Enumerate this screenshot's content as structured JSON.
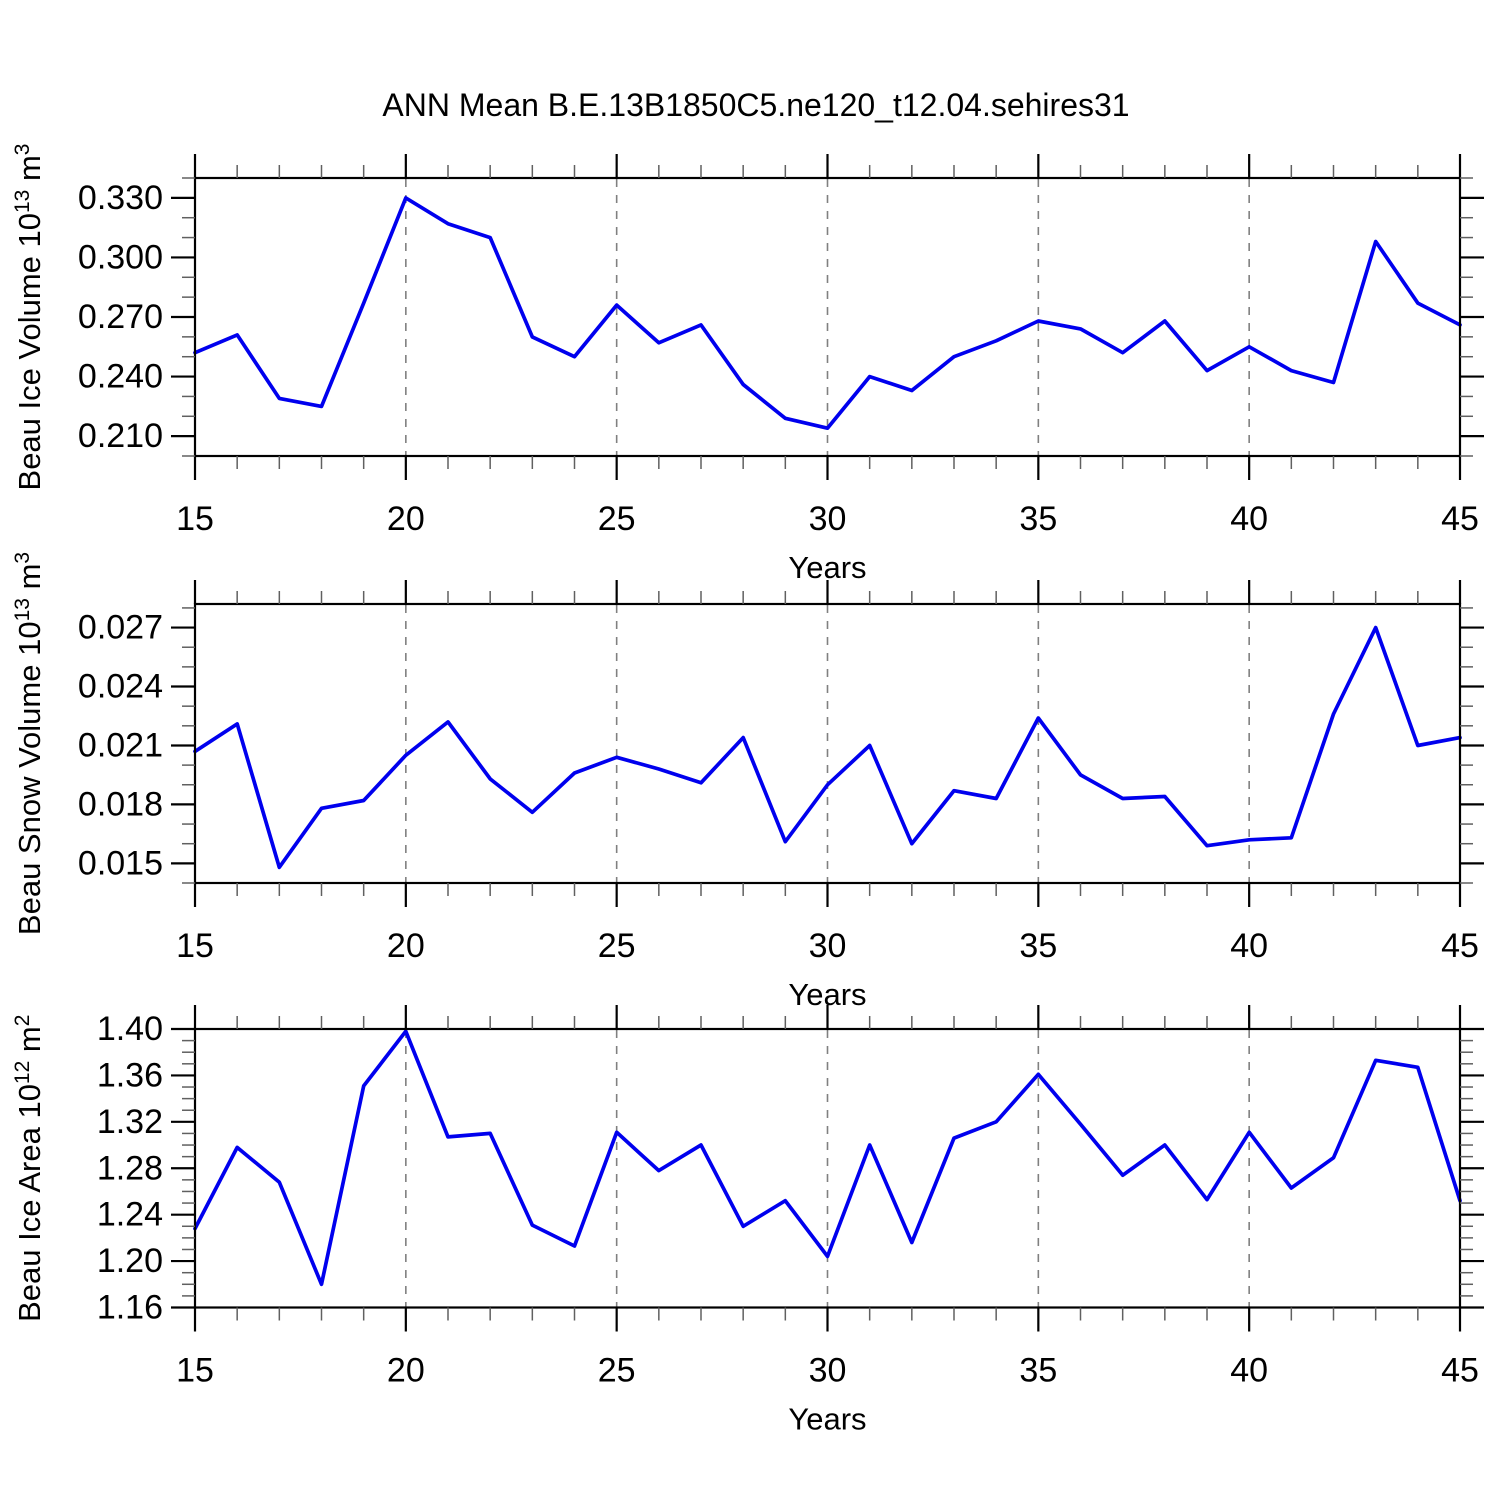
{
  "title": "ANN Mean B.E.13B1850C5.ne120_t12.04.sehires31",
  "chart_data": [
    {
      "type": "line",
      "panel": 1,
      "ylabel_segments": [
        {
          "t": "Beau Ice Volume 10",
          "sup": false
        },
        {
          "t": "13",
          "sup": true
        },
        {
          "t": " m",
          "sup": false
        },
        {
          "t": "3",
          "sup": true
        }
      ],
      "xlabel": "Years",
      "x": [
        15,
        16,
        17,
        18,
        19,
        20,
        21,
        22,
        23,
        24,
        25,
        26,
        27,
        28,
        29,
        30,
        31,
        32,
        33,
        34,
        35,
        36,
        37,
        38,
        39,
        40,
        41,
        42,
        43,
        44,
        45
      ],
      "values": [
        0.252,
        0.261,
        0.229,
        0.225,
        0.277,
        0.33,
        0.317,
        0.31,
        0.26,
        0.25,
        0.276,
        0.257,
        0.266,
        0.236,
        0.219,
        0.214,
        0.24,
        0.233,
        0.25,
        0.258,
        0.268,
        0.264,
        0.252,
        0.268,
        0.243,
        0.255,
        0.243,
        0.237,
        0.308,
        0.277,
        0.266
      ],
      "xlim": [
        15,
        45
      ],
      "ylim": [
        0.2,
        0.34
      ],
      "xticks": [
        15,
        20,
        25,
        30,
        35,
        40,
        45
      ],
      "xtick_labels": [
        "15",
        "20",
        "25",
        "30",
        "35",
        "40",
        "45"
      ],
      "xminor_step": 1,
      "ytick_values": [
        0.33,
        0.3,
        0.27,
        0.24,
        0.21
      ],
      "ytick_labels": [
        "0.330",
        "0.300",
        "0.270",
        "0.240",
        "0.210"
      ],
      "yminor_step": 0.01,
      "grid_x": [
        20,
        25,
        30,
        35,
        40
      ],
      "grid_style": "vertical-dashed",
      "line_color": "#0000ee",
      "grid_color": "#808080"
    },
    {
      "type": "line",
      "panel": 2,
      "ylabel_segments": [
        {
          "t": "Beau Snow Volume 10",
          "sup": false
        },
        {
          "t": "13",
          "sup": true
        },
        {
          "t": " m",
          "sup": false
        },
        {
          "t": "3",
          "sup": true
        }
      ],
      "xlabel": "Years",
      "x": [
        15,
        16,
        17,
        18,
        19,
        20,
        21,
        22,
        23,
        24,
        25,
        26,
        27,
        28,
        29,
        30,
        31,
        32,
        33,
        34,
        35,
        36,
        37,
        38,
        39,
        40,
        41,
        42,
        43,
        44,
        45
      ],
      "values": [
        0.0207,
        0.0221,
        0.0148,
        0.0178,
        0.0182,
        0.0205,
        0.0222,
        0.0193,
        0.0176,
        0.0196,
        0.0204,
        0.0198,
        0.0191,
        0.0214,
        0.0161,
        0.019,
        0.021,
        0.016,
        0.0187,
        0.0183,
        0.0224,
        0.0195,
        0.0183,
        0.0184,
        0.0159,
        0.0162,
        0.0163,
        0.0226,
        0.027,
        0.021,
        0.0214
      ],
      "xlim": [
        15,
        45
      ],
      "ylim": [
        0.014,
        0.0282
      ],
      "xticks": [
        15,
        20,
        25,
        30,
        35,
        40,
        45
      ],
      "xtick_labels": [
        "15",
        "20",
        "25",
        "30",
        "35",
        "40",
        "45"
      ],
      "xminor_step": 1,
      "ytick_values": [
        0.027,
        0.024,
        0.021,
        0.018,
        0.015
      ],
      "ytick_labels": [
        "0.027",
        "0.024",
        "0.021",
        "0.018",
        "0.015"
      ],
      "yminor_step": 0.001,
      "grid_x": [
        20,
        25,
        30,
        35,
        40
      ],
      "grid_style": "vertical-dashed",
      "line_color": "#0000ee",
      "grid_color": "#808080"
    },
    {
      "type": "line",
      "panel": 3,
      "ylabel_segments": [
        {
          "t": "Beau Ice Area 10",
          "sup": false
        },
        {
          "t": "12",
          "sup": true
        },
        {
          "t": " m",
          "sup": false
        },
        {
          "t": "2",
          "sup": true
        }
      ],
      "xlabel": "Years",
      "x": [
        15,
        16,
        17,
        18,
        19,
        20,
        21,
        22,
        23,
        24,
        25,
        26,
        27,
        28,
        29,
        30,
        31,
        32,
        33,
        34,
        35,
        36,
        37,
        38,
        39,
        40,
        41,
        42,
        43,
        44,
        45
      ],
      "values": [
        1.228,
        1.298,
        1.268,
        1.18,
        1.351,
        1.398,
        1.307,
        1.31,
        1.231,
        1.213,
        1.311,
        1.278,
        1.3,
        1.23,
        1.252,
        1.204,
        1.3,
        1.216,
        1.306,
        1.32,
        1.361,
        1.318,
        1.274,
        1.3,
        1.253,
        1.311,
        1.263,
        1.289,
        1.373,
        1.367,
        1.252
      ],
      "xlim": [
        15,
        45
      ],
      "ylim": [
        1.16,
        1.4
      ],
      "xticks": [
        15,
        20,
        25,
        30,
        35,
        40,
        45
      ],
      "xtick_labels": [
        "15",
        "20",
        "25",
        "30",
        "35",
        "40",
        "45"
      ],
      "xminor_step": 1,
      "ytick_values": [
        1.4,
        1.36,
        1.32,
        1.28,
        1.24,
        1.2,
        1.16
      ],
      "ytick_labels": [
        "1.40",
        "1.36",
        "1.32",
        "1.28",
        "1.24",
        "1.20",
        "1.16"
      ],
      "yminor_step": 0.01,
      "grid_x": [
        20,
        25,
        30,
        35,
        40
      ],
      "grid_style": "vertical-dashed",
      "line_color": "#0000ee",
      "grid_color": "#808080"
    }
  ]
}
